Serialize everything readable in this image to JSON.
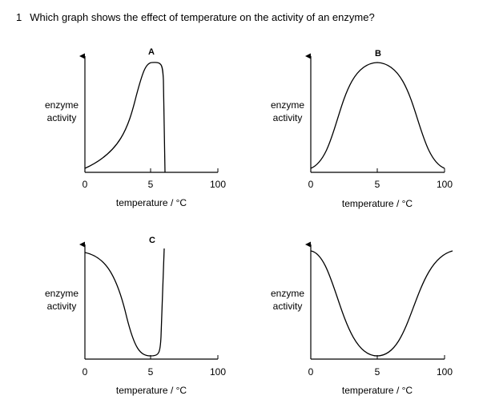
{
  "question": {
    "number": "1",
    "text": "Which graph shows the effect of temperature on the activity of an enzyme?"
  },
  "graphs": [
    {
      "option": "A",
      "ylabel_line1": "enzyme",
      "ylabel_line2": "activity",
      "xlabel": "temperature / °C",
      "ticks": [
        "0",
        "5",
        "100"
      ],
      "curve": "sharp-peak-then-drop"
    },
    {
      "option": "B",
      "ylabel_line1": "enzyme",
      "ylabel_line2": "activity",
      "xlabel": "temperature / °C",
      "ticks": [
        "0",
        "5",
        "100"
      ],
      "curve": "symmetric-bell"
    },
    {
      "option": "C",
      "ylabel_line1": "enzyme",
      "ylabel_line2": "activity",
      "xlabel": "temperature / °C",
      "ticks": [
        "0",
        "5",
        "100"
      ],
      "curve": "trough-then-sharp-rise"
    },
    {
      "option": "",
      "ylabel_line1": "enzyme",
      "ylabel_line2": "activity",
      "xlabel": "temperature / °C",
      "ticks": [
        "0",
        "5",
        "100"
      ],
      "curve": "symmetric-trough"
    }
  ]
}
